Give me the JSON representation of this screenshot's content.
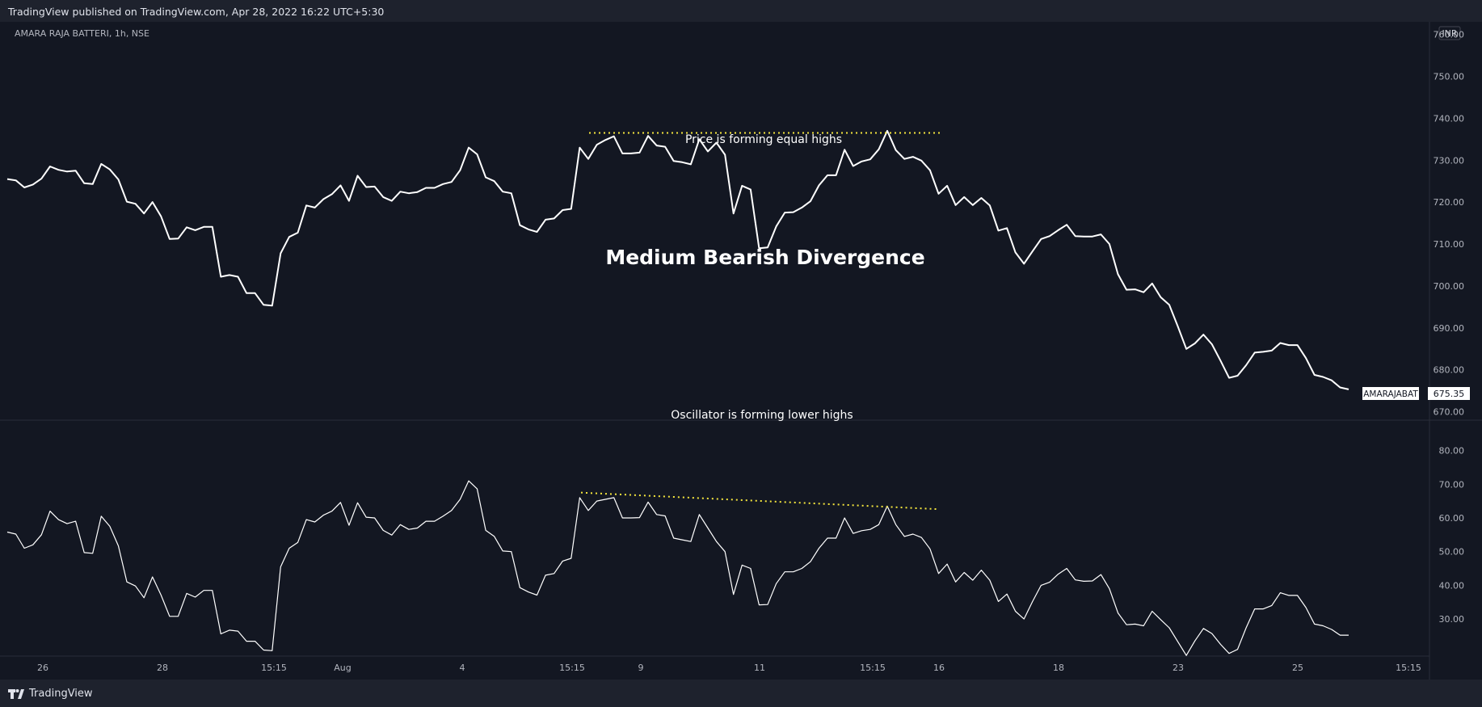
{
  "header": {
    "published": "TradingView published on TradingView.com, Apr 28, 2022 16:22 UTC+5:30"
  },
  "footer": {
    "brand": "TradingView",
    "logo_icon": "tradingview-logo-icon"
  },
  "chart_data": [
    {
      "type": "line",
      "title": "AMARA RAJA BATTERI, 1h, NSE",
      "currency": "INR",
      "symbol": "AMARAJABAT",
      "last_value": "675.35",
      "y_ticks": [
        "760.00",
        "750.00",
        "740.00",
        "730.00",
        "720.00",
        "710.00",
        "700.00",
        "690.00",
        "680.00",
        "670.00"
      ],
      "ylim": [
        668,
        763
      ],
      "x_ticks": [
        "26",
        "28",
        "15:15",
        "Aug",
        "4",
        "15:15",
        "9",
        "11",
        "15:15",
        "16",
        "18",
        "23",
        "25",
        "15:15"
      ],
      "values": [
        725.5,
        725.2,
        723.5,
        724.2,
        725.6,
        728.5,
        727.7,
        727.3,
        727.5,
        724.5,
        724.3,
        729.1,
        727.8,
        725.4,
        720.1,
        719.6,
        717.3,
        720.0,
        716.6,
        711.2,
        711.3,
        714.0,
        713.3,
        714.1,
        714.1,
        702.2,
        702.6,
        702.2,
        698.3,
        698.3,
        695.5,
        695.3,
        707.8,
        711.7,
        712.7,
        719.2,
        718.7,
        720.7,
        721.9,
        724.0,
        720.3,
        726.3,
        723.6,
        723.7,
        721.2,
        720.3,
        722.5,
        722.1,
        722.4,
        723.4,
        723.4,
        724.3,
        724.8,
        727.6,
        733.0,
        731.4,
        725.9,
        725.0,
        722.5,
        722.1,
        714.5,
        713.5,
        712.9,
        715.8,
        716.1,
        718.1,
        718.4,
        733.0,
        730.3,
        733.7,
        734.8,
        735.7,
        731.6,
        731.6,
        731.8,
        735.8,
        733.5,
        733.2,
        729.8,
        729.5,
        729.0,
        735.0,
        732.1,
        734.2,
        731.3,
        717.3,
        723.9,
        723.0,
        709.0,
        709.2,
        714.2,
        717.5,
        717.6,
        718.7,
        720.2,
        724.0,
        726.4,
        726.4,
        732.5,
        728.6,
        729.7,
        730.2,
        732.6,
        737.0,
        732.4,
        730.3,
        730.8,
        729.9,
        727.6,
        722.0,
        723.9,
        719.3,
        721.2,
        719.3,
        721.0,
        719.2,
        713.2,
        713.8,
        708.0,
        705.3,
        708.3,
        711.2,
        711.9,
        713.3,
        714.6,
        711.9,
        711.8,
        711.8,
        712.3,
        710.0,
        702.8,
        699.1,
        699.2,
        698.5,
        700.6,
        697.3,
        695.5,
        690.4,
        685.0,
        686.3,
        688.4,
        686.1,
        682.2,
        678.1,
        678.6,
        681.1,
        684.1,
        684.3,
        684.6,
        686.4,
        685.9,
        685.9,
        682.8,
        678.8,
        678.3,
        677.5,
        675.8,
        675.35
      ],
      "annotations": {
        "top": "Price is forming equal highs",
        "center": "Medium Bearish Divergence"
      }
    },
    {
      "type": "line",
      "y_ticks": [
        "80.00",
        "70.00",
        "60.00",
        "50.00",
        "40.00",
        "30.00"
      ],
      "ylim": [
        19,
        89
      ],
      "values": [
        55.8,
        55.2,
        51.0,
        52.0,
        55.0,
        62.0,
        59.5,
        58.3,
        59.0,
        49.7,
        49.5,
        60.5,
        57.5,
        51.7,
        41.0,
        39.8,
        36.3,
        42.5,
        37.1,
        30.8,
        30.8,
        37.6,
        36.5,
        38.5,
        38.5,
        25.6,
        26.7,
        26.4,
        23.4,
        23.4,
        20.8,
        20.6,
        45.5,
        51.0,
        52.7,
        59.5,
        58.8,
        60.8,
        62.0,
        64.6,
        57.8,
        64.5,
        60.2,
        60.0,
        56.3,
        54.9,
        58.0,
        56.6,
        57.0,
        59.0,
        59.0,
        60.5,
        62.2,
        65.5,
        71.0,
        68.6,
        56.3,
        54.5,
        50.2,
        50.0,
        39.3,
        38.0,
        37.1,
        43.0,
        43.5,
        47.2,
        48.0,
        66.0,
        62.2,
        65.0,
        65.5,
        66.0,
        60.0,
        60.0,
        60.1,
        64.7,
        61.0,
        60.6,
        54.0,
        53.5,
        53.0,
        61.0,
        57.0,
        53.0,
        50.0,
        37.3,
        46.0,
        45.0,
        34.2,
        34.3,
        40.5,
        44.0,
        44.0,
        45.0,
        47.0,
        51.0,
        54.0,
        54.0,
        60.0,
        55.4,
        56.2,
        56.6,
        58.0,
        63.5,
        58.0,
        54.5,
        55.2,
        54.2,
        50.8,
        43.5,
        46.3,
        41.0,
        43.8,
        41.5,
        44.5,
        41.5,
        35.2,
        37.4,
        32.3,
        30.0,
        35.2,
        40.0,
        40.9,
        43.3,
        45.0,
        41.6,
        41.2,
        41.3,
        43.2,
        39.0,
        31.8,
        28.3,
        28.5,
        28.0,
        32.3,
        29.8,
        27.4,
        23.3,
        19.2,
        23.5,
        27.2,
        25.7,
        22.5,
        19.8,
        21.0,
        27.4,
        33.0,
        33.0,
        34.0,
        37.8,
        37.0,
        37.0,
        33.4,
        28.5,
        28.0,
        26.9,
        25.2,
        25.2
      ],
      "annotations": {
        "top": "Oscillator is forming lower highs"
      }
    }
  ]
}
